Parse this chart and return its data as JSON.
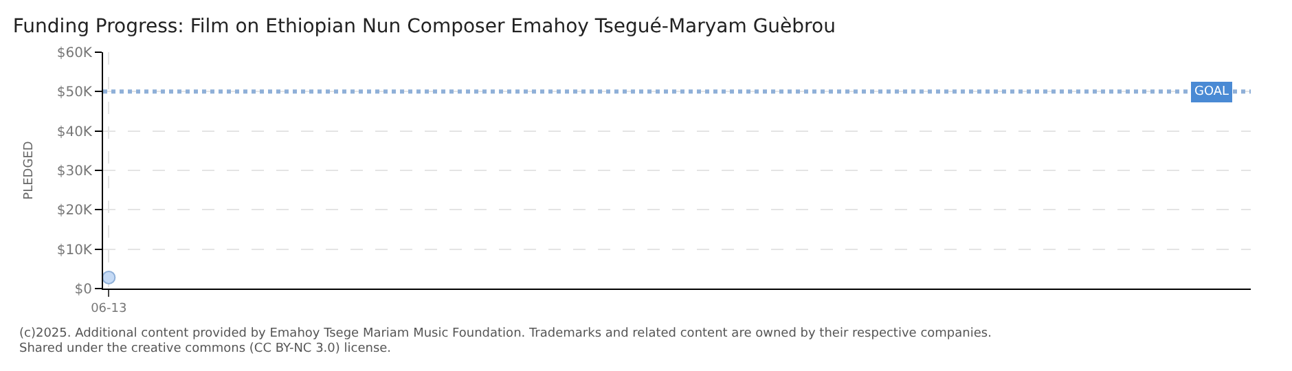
{
  "chart_data": {
    "type": "scatter",
    "title": "Funding Progress: Film on Ethiopian Nun Composer Emahoy Tsegué-Maryam Guèbrou",
    "ylabel": "PLEDGED",
    "categories": [
      "06-13"
    ],
    "series": [
      {
        "color": "#c5daf5",
        "values": [
          2800
        ]
      }
    ],
    "ylim": [
      0,
      60000
    ],
    "yticks": [
      {
        "value": 0,
        "label": "$0"
      },
      {
        "value": 10000,
        "label": "$10K"
      },
      {
        "value": 20000,
        "label": "$20K"
      },
      {
        "value": 30000,
        "label": "$30K"
      },
      {
        "value": 40000,
        "label": "$40K"
      },
      {
        "value": 50000,
        "label": "$50K"
      },
      {
        "value": 60000,
        "label": "$60K"
      }
    ],
    "ref_lines": [
      {
        "axis": "y",
        "value": 50000,
        "label": "GOAL",
        "color": "#8fb0d8",
        "line_style": "dotted"
      }
    ],
    "grid": true,
    "marker": "circle",
    "annotations": [
      "(c)2025. Additional content provided by Emahoy Tsege Mariam Music Foundation. Trademarks and related content are owned by their respective companies.",
      "Shared under the creative commons (CC BY-NC 3.0) license."
    ]
  }
}
